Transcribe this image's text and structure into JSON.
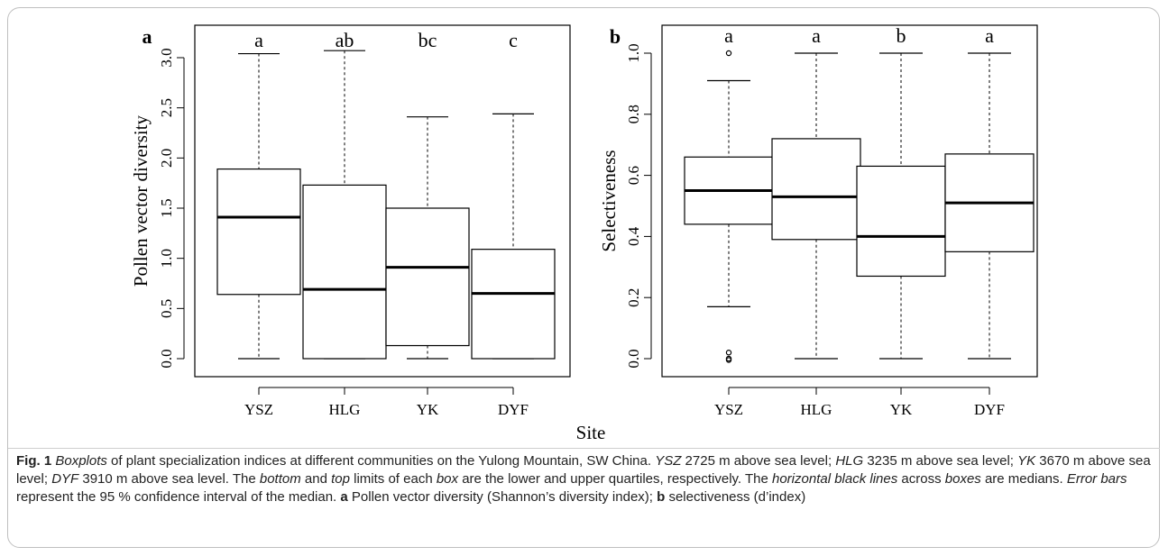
{
  "figure": {
    "x_axis_label": "Site",
    "caption_parts": [
      {
        "t": "Fig. 1",
        "s": "label"
      },
      {
        "t": "  ",
        "s": ""
      },
      {
        "t": "Boxplots",
        "s": "em"
      },
      {
        "t": " of plant specialization indices at different communities on the Yulong Mountain, SW China. ",
        "s": ""
      },
      {
        "t": "YSZ",
        "s": "em"
      },
      {
        "t": " 2725 m above sea level; ",
        "s": ""
      },
      {
        "t": "HLG",
        "s": "em"
      },
      {
        "t": " 3235 m above sea level; ",
        "s": ""
      },
      {
        "t": "YK",
        "s": "em"
      },
      {
        "t": " 3670 m above sea level; ",
        "s": ""
      },
      {
        "t": "DYF",
        "s": "em"
      },
      {
        "t": " 3910 m above sea level. The ",
        "s": ""
      },
      {
        "t": "bottom",
        "s": "em"
      },
      {
        "t": " and ",
        "s": ""
      },
      {
        "t": "top",
        "s": "em"
      },
      {
        "t": " limits of each ",
        "s": ""
      },
      {
        "t": "box",
        "s": "em"
      },
      {
        "t": " are the lower and upper quartiles, respectively. The ",
        "s": ""
      },
      {
        "t": "horizontal black lines",
        "s": "em"
      },
      {
        "t": " across ",
        "s": ""
      },
      {
        "t": "boxes",
        "s": "em"
      },
      {
        "t": " are medians. ",
        "s": ""
      },
      {
        "t": "Error bars",
        "s": "em"
      },
      {
        "t": " represent the 95 % confidence interval of the median. ",
        "s": ""
      },
      {
        "t": "a",
        "s": "b"
      },
      {
        "t": " Pollen vector diversity (Shannon’s diversity index); ",
        "s": ""
      },
      {
        "t": "b",
        "s": "b"
      },
      {
        "t": " selectiveness (d’index)",
        "s": ""
      }
    ]
  },
  "chart_data": [
    {
      "type": "boxplot",
      "panel_label": "a",
      "ylabel": "Pollen vector diversity",
      "ylim": [
        0.0,
        3.15
      ],
      "yticks": [
        0.0,
        0.5,
        1.0,
        1.5,
        2.0,
        2.5,
        3.0
      ],
      "ytick_labels": [
        "0.0",
        "0.5",
        "1.0",
        "1.5",
        "2.0",
        "2.5",
        "3.0"
      ],
      "categories": [
        "YSZ",
        "HLG",
        "YK",
        "DYF"
      ],
      "boxes": [
        {
          "whisker_low": 0.0,
          "q1": 0.64,
          "median": 1.41,
          "q3": 1.89,
          "whisker_high": 3.04,
          "outliers": []
        },
        {
          "whisker_low": 0.0,
          "q1": 0.0,
          "median": 0.69,
          "q3": 1.73,
          "whisker_high": 3.07,
          "outliers": []
        },
        {
          "whisker_low": 0.0,
          "q1": 0.13,
          "median": 0.91,
          "q3": 1.5,
          "whisker_high": 2.41,
          "outliers": []
        },
        {
          "whisker_low": 0.0,
          "q1": 0.0,
          "median": 0.65,
          "q3": 1.09,
          "whisker_high": 2.44,
          "outliers": []
        }
      ],
      "group_letters": [
        "a",
        "ab",
        "bc",
        "c"
      ]
    },
    {
      "type": "boxplot",
      "panel_label": "b",
      "ylabel": "Selectiveness",
      "ylim": [
        0.0,
        1.04
      ],
      "yticks": [
        0.0,
        0.2,
        0.4,
        0.6,
        0.8,
        1.0
      ],
      "ytick_labels": [
        "0.0",
        "0.2",
        "0.4",
        "0.6",
        "0.8",
        "1.0"
      ],
      "categories": [
        "YSZ",
        "HLG",
        "YK",
        "DYF"
      ],
      "boxes": [
        {
          "whisker_low": 0.17,
          "q1": 0.44,
          "median": 0.55,
          "q3": 0.66,
          "whisker_high": 0.91,
          "outliers": [
            1.0,
            0.02,
            0.0,
            0.0
          ]
        },
        {
          "whisker_low": 0.0,
          "q1": 0.39,
          "median": 0.53,
          "q3": 0.72,
          "whisker_high": 1.0,
          "outliers": []
        },
        {
          "whisker_low": 0.0,
          "q1": 0.27,
          "median": 0.4,
          "q3": 0.63,
          "whisker_high": 1.0,
          "outliers": []
        },
        {
          "whisker_low": 0.0,
          "q1": 0.35,
          "median": 0.51,
          "q3": 0.67,
          "whisker_high": 1.0,
          "outliers": []
        }
      ],
      "group_letters": [
        "a",
        "a",
        "b",
        "a"
      ]
    }
  ]
}
